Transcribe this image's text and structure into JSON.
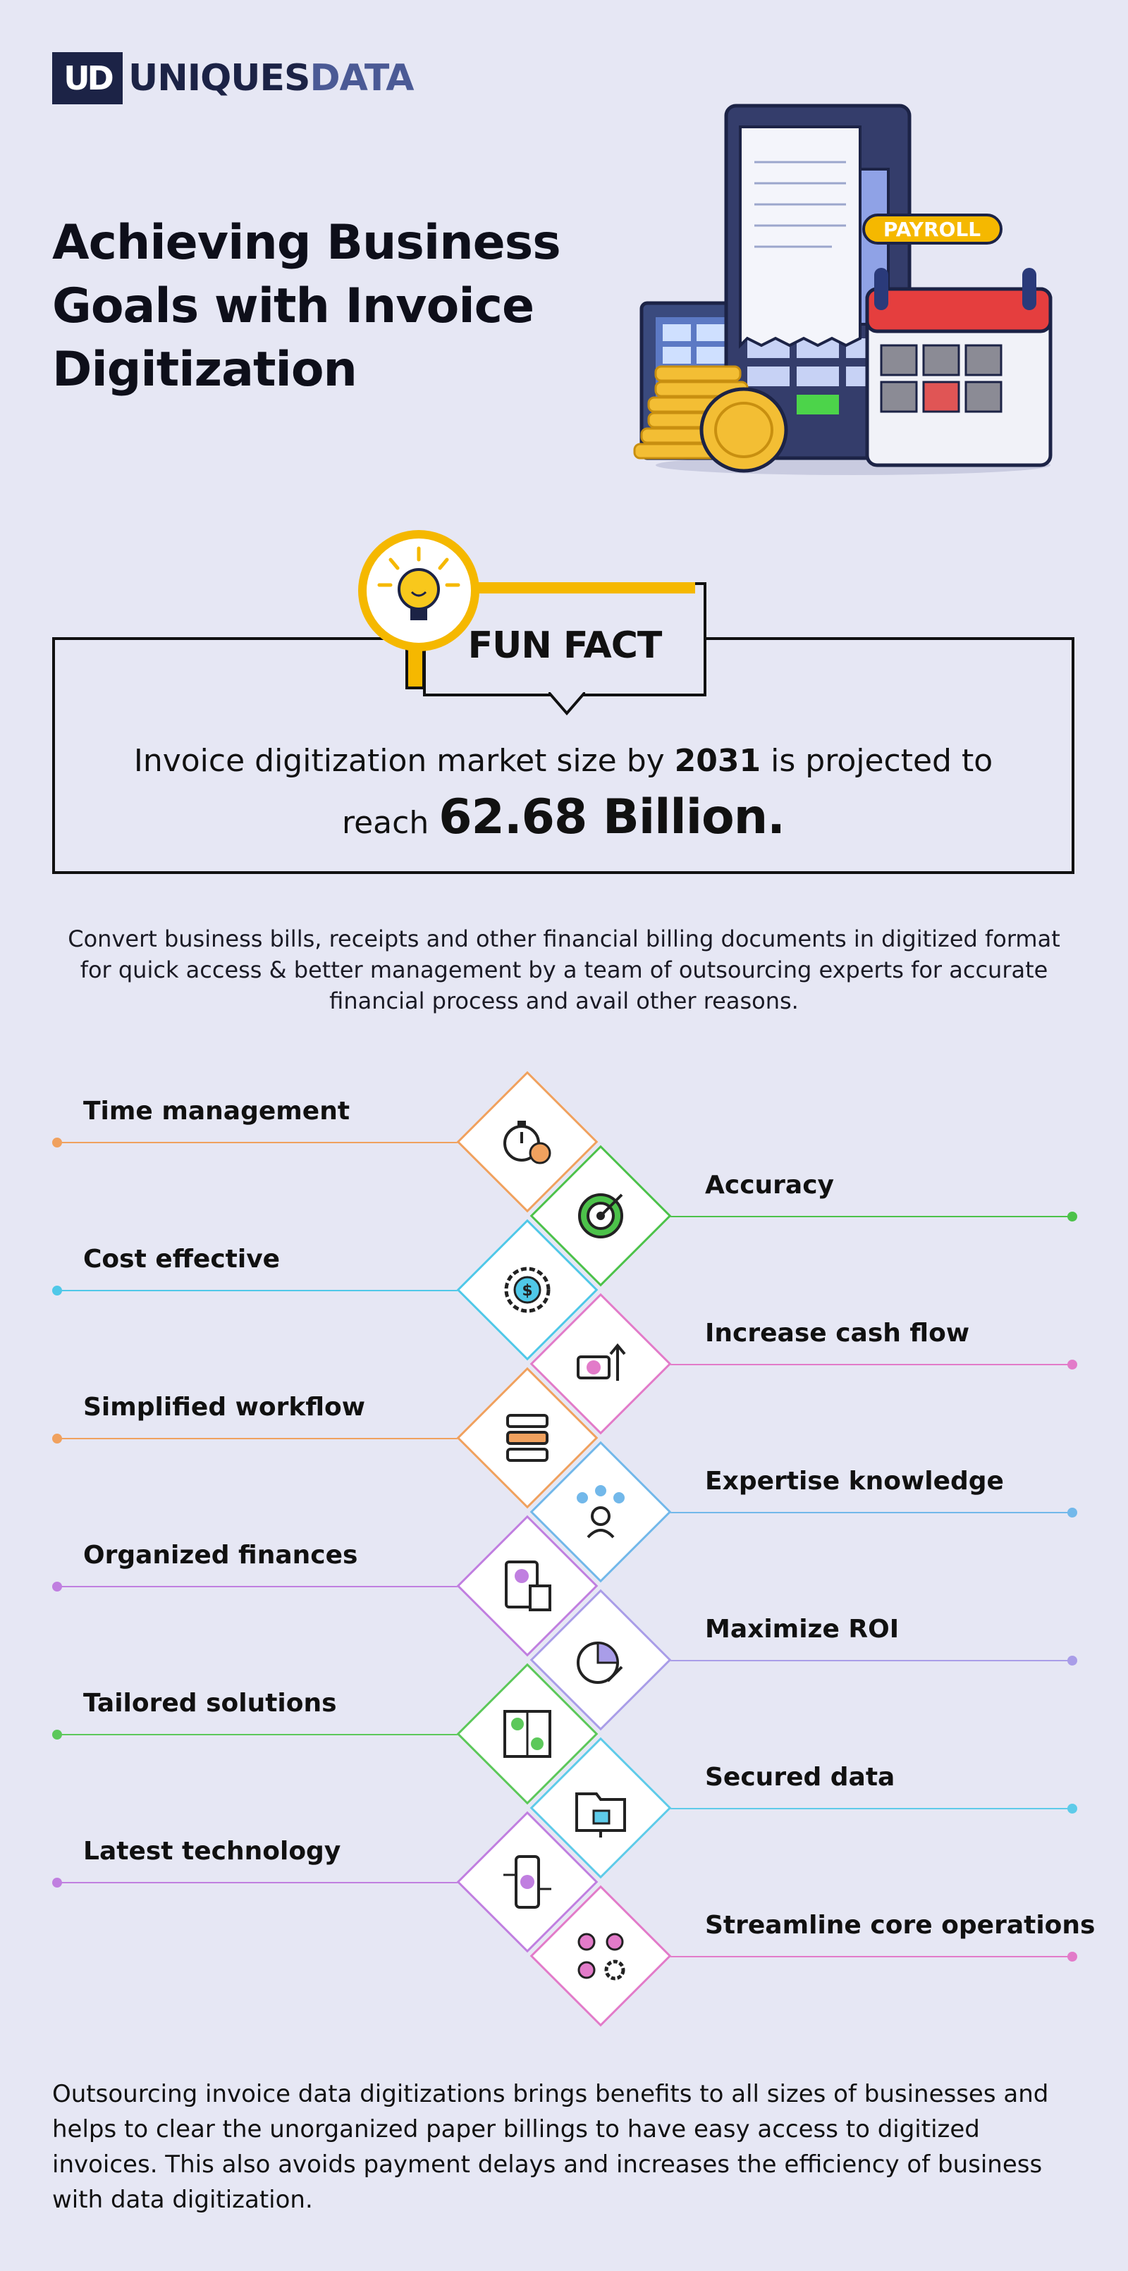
{
  "brand": {
    "mark": "UD",
    "name_part1": "UNIQUES",
    "name_part2": "DATA"
  },
  "title": "Achieving Business Goals with Invoice Digitization",
  "illustration": {
    "payroll_tag": "PAYROLL"
  },
  "fun_fact": {
    "tag": "FUN FACT",
    "text_pre": "Invoice digitization market size by ",
    "year": "2031",
    "text_mid": " is projected to",
    "text_reach": "reach ",
    "value": "62.68 Billion."
  },
  "intro": "Convert business bills, receipts and other financial billing documents in digitized format for quick access & better management by a team of outsourcing experts for accurate financial process and avail other reasons.",
  "benefits": [
    {
      "label": "Time management",
      "side": "left",
      "color": "#f0a15e",
      "icon": "stopwatch-gear-icon"
    },
    {
      "label": "Accuracy",
      "side": "right",
      "color": "#4cc24a",
      "icon": "target-icon"
    },
    {
      "label": "Cost effective",
      "side": "left",
      "color": "#4fc8e8",
      "icon": "dollar-gear-icon"
    },
    {
      "label": "Increase cash flow",
      "side": "right",
      "color": "#e27bc9",
      "icon": "cash-flow-icon"
    },
    {
      "label": "Simplified workflow",
      "side": "left",
      "color": "#f0a15e",
      "icon": "workflow-icon"
    },
    {
      "label": "Expertise knowledge",
      "side": "right",
      "color": "#72b8ea",
      "icon": "expert-network-icon"
    },
    {
      "label": "Organized finances",
      "side": "left",
      "color": "#c07fe0",
      "icon": "finance-document-icon"
    },
    {
      "label": "Maximize ROI",
      "side": "right",
      "color": "#a99de8",
      "icon": "roi-pie-icon"
    },
    {
      "label": "Tailored solutions",
      "side": "left",
      "color": "#5cc85a",
      "icon": "puzzle-icon"
    },
    {
      "label": "Secured data",
      "side": "right",
      "color": "#5ecbe9",
      "icon": "lock-folder-icon"
    },
    {
      "label": "Latest technology",
      "side": "left",
      "color": "#c07fe0",
      "icon": "smartphone-tech-icon"
    },
    {
      "label": "Streamline core operations",
      "side": "right",
      "color": "#e27bc9",
      "icon": "operations-gear-icon"
    }
  ],
  "outro": "Outsourcing invoice data digitizations brings benefits to all sizes of businesses and helps to clear the unorganized paper billings to have easy access to digitized invoices. This also avoids payment delays and increases the efficiency of business with data digitization."
}
